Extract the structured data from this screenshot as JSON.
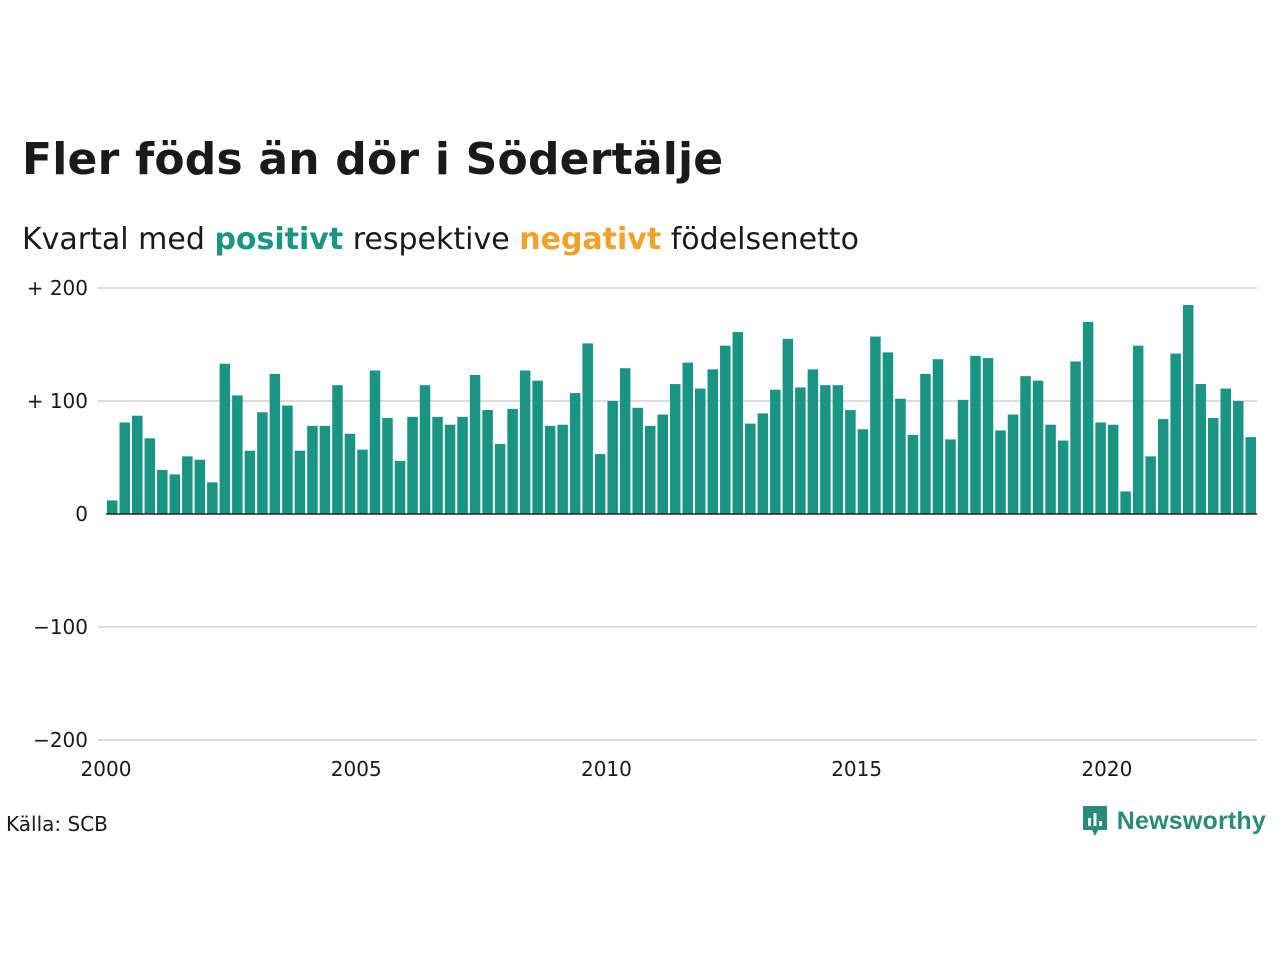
{
  "title": "Fler föds än dör i Södertälje",
  "subtitle": {
    "prefix": "Kvartal med",
    "positive_word": "positivt",
    "middle": "respektive",
    "negative_word": "negativt",
    "suffix": "födelsenetto"
  },
  "source": "Källa: SCB",
  "brand": "Newsworthy",
  "colors": {
    "positive": "#1b9583",
    "negative": "#f0a22b",
    "grid": "#dddddd",
    "axis": "#222222"
  },
  "chart_data": {
    "type": "bar",
    "ylim": [
      -200,
      200
    ],
    "yticks": [
      {
        "value": 200,
        "label": "+ 200"
      },
      {
        "value": 100,
        "label": "+ 100"
      },
      {
        "value": 0,
        "label": "0"
      },
      {
        "value": -100,
        "label": "−100"
      },
      {
        "value": -200,
        "label": "−200"
      }
    ],
    "xticks": [
      {
        "year": 2000,
        "label": "2000"
      },
      {
        "year": 2005,
        "label": "2005"
      },
      {
        "year": 2010,
        "label": "2010"
      },
      {
        "year": 2015,
        "label": "2015"
      },
      {
        "year": 2020,
        "label": "2020"
      }
    ],
    "first_quarter": "2000 Q1",
    "values": [
      12,
      81,
      87,
      67,
      39,
      35,
      51,
      48,
      28,
      133,
      105,
      56,
      90,
      124,
      96,
      56,
      78,
      78,
      114,
      71,
      57,
      127,
      85,
      47,
      86,
      114,
      86,
      79,
      86,
      123,
      92,
      62,
      93,
      127,
      118,
      78,
      79,
      107,
      151,
      53,
      100,
      129,
      94,
      78,
      88,
      115,
      134,
      111,
      128,
      149,
      161,
      80,
      89,
      110,
      155,
      112,
      128,
      114,
      114,
      92,
      75,
      157,
      143,
      102,
      70,
      124,
      137,
      66,
      101,
      140,
      138,
      74,
      88,
      122,
      118,
      79,
      65,
      135,
      170,
      81,
      79,
      20,
      149,
      51,
      84,
      142,
      185,
      115,
      85,
      111,
      100,
      68
    ]
  }
}
